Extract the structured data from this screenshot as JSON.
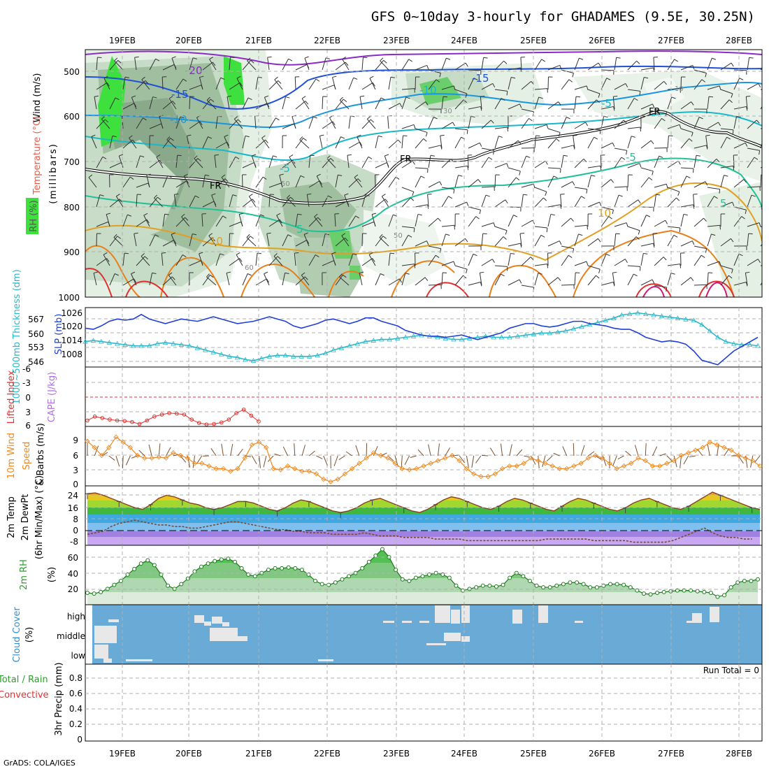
{
  "title": "GFS 0~10day 3-hourly for GHADAMES (9.5E, 30.25N)",
  "credit": "GrADS: COLA/IGES",
  "dates": [
    "19FEB",
    "20FEB",
    "21FEB",
    "22FEB",
    "23FEB",
    "24FEB",
    "25FEB",
    "26FEB",
    "27FEB",
    "28FEB"
  ],
  "colors": {
    "slp": "#1f3fd6",
    "thickness": "#2ab8c8",
    "lifted_index": "#e03030",
    "cape": "#b070e0",
    "wind_speed": "#f08a20",
    "rh_fill": "#2e9e2e",
    "rh_line": "#1a7a1a",
    "cloud_bg": "#6aaad6",
    "cloud_fill": "#e8e8e8",
    "rain": "#2aa02a",
    "convective": "#e03030"
  },
  "labels": {
    "wind": "Wind (m/s)",
    "temperature": "Temperature (°C)",
    "rh": "RH (%)",
    "millibars": "(millibars)",
    "thickness": "1000~500mb Thickness (dm)",
    "slp": "SLP (mb)",
    "lifted_index": "Lifted Index",
    "cape": "CAPE (J/kg)",
    "wind10": "10m Wind",
    "speed": "Speed",
    "barbs": "& Barbs (m/s)",
    "temp2m": "2m Temp",
    "dewpt2m": "2m DewPt",
    "minmax": "(6hr Min/Max) (°C)",
    "rh2m": "2m RH",
    "pct": "(%)",
    "cloud_cover": "Cloud Cover",
    "cloud_pct": "(%)",
    "total_rain": "Total / Rain",
    "convective": "Convective",
    "precip": "3hr Precip (mm)",
    "run_total": "Run Total = 0"
  },
  "panels": {
    "profile": {
      "y_ticks": [
        "500",
        "600",
        "700",
        "800",
        "900",
        "1000"
      ],
      "contour_labels": [
        "-20",
        "-15",
        "-15",
        "-10",
        "-10",
        "-5",
        "-5",
        "-5",
        "5",
        "5",
        "10",
        "10",
        "FR",
        "FR",
        "FR"
      ],
      "rh_labels": [
        "30",
        "50",
        "10",
        "60",
        "50"
      ]
    },
    "slp": {
      "y_ticks": [
        "1026",
        "1020",
        "1014",
        "1008"
      ]
    },
    "thickness": {
      "y_ticks": [
        "567",
        "560",
        "553",
        "546"
      ]
    },
    "li": {
      "y_ticks": [
        "-6",
        "-3",
        "0",
        "3",
        "6"
      ]
    },
    "wind10": {
      "y_ticks": [
        "9",
        "6",
        "3",
        "0"
      ]
    },
    "temp2m": {
      "y_ticks": [
        "24",
        "16",
        "8",
        "0",
        "-8"
      ]
    },
    "rh2m": {
      "y_ticks": [
        "60",
        "40",
        "20"
      ]
    },
    "cloud": {
      "y_ticks": [
        "high",
        "middle",
        "low"
      ]
    },
    "precip": {
      "y_ticks": [
        "0.8",
        "0.6",
        "0.4",
        "0.2",
        "0"
      ]
    }
  },
  "chart_data": [
    {
      "type": "line",
      "title": "Sea Level Pressure / 1000~500mb Thickness",
      "x_start": "18FEB 18Z",
      "x_step_hours": 3,
      "series": [
        {
          "name": "SLP (mb)",
          "ylim": [
            1003,
            1029
          ],
          "values": [
            1020,
            1019.5,
            1021,
            1023,
            1024,
            1023.5,
            1024,
            1026,
            1024,
            1023,
            1022,
            1023,
            1024,
            1023.5,
            1023,
            1024,
            1025,
            1024,
            1023,
            1022,
            1022.5,
            1023,
            1024,
            1025,
            1024,
            1023,
            1021,
            1020,
            1021,
            1022,
            1023.5,
            1024,
            1023,
            1022,
            1023,
            1024.5,
            1024.5,
            1023,
            1022,
            1021,
            1019,
            1018,
            1017,
            1016.5,
            1016.5,
            1016,
            1016.5,
            1017,
            1016,
            1015,
            1016,
            1017,
            1018,
            1020,
            1021,
            1022,
            1022,
            1021,
            1020.5,
            1021,
            1022,
            1023,
            1023,
            1022,
            1021.5,
            1021,
            1020,
            1019.5,
            1019.5,
            1018,
            1016,
            1015,
            1014,
            1014.5,
            1014,
            1013,
            1010,
            1006,
            1005,
            1004,
            1007,
            1010,
            1012,
            1014,
            1016
          ]
        },
        {
          "name": "Thickness (dm)",
          "ylim": [
            543,
            571
          ],
          "values": [
            555,
            555.5,
            555,
            554.5,
            554,
            553.5,
            553,
            553,
            553,
            554,
            554.5,
            554,
            553.5,
            553,
            552,
            551,
            550,
            549,
            548,
            547.5,
            546.5,
            546,
            547,
            548,
            548.5,
            548.5,
            548,
            548,
            548,
            548.5,
            549.5,
            551,
            552,
            553,
            554,
            555,
            555.5,
            556,
            556,
            556.5,
            557,
            557.5,
            558,
            557.5,
            557,
            556.5,
            556,
            556,
            556.5,
            557,
            557.5,
            557,
            557,
            557,
            557.5,
            558,
            558.5,
            559,
            559,
            559.5,
            560,
            561,
            562,
            563,
            564,
            565,
            566,
            567.5,
            568,
            568.5,
            568,
            567.5,
            567,
            566.5,
            566,
            565.5,
            565,
            563,
            560,
            557,
            555,
            554,
            553.5,
            553.5,
            553
          ]
        }
      ]
    },
    {
      "type": "line",
      "title": "Lifted Index",
      "ylim": [
        6,
        -6
      ],
      "series": [
        {
          "name": "Lifted Index",
          "values": [
            4.8,
            4,
            4.3,
            4.6,
            4.8,
            4.9,
            5.1,
            5.5,
            4.8,
            4,
            3.6,
            3.3,
            3.4,
            3.6,
            4.6,
            5.3,
            5.6,
            5.5,
            5.2,
            4.6,
            3.3,
            2.6,
            3.8,
            5
          ]
        }
      ]
    },
    {
      "type": "line",
      "title": "10m Wind Speed",
      "ylim": [
        0,
        11
      ],
      "series": [
        {
          "name": "10m Wind Speed (m/s)",
          "values": [
            8.2,
            7,
            5.5,
            7,
            9,
            8,
            7,
            5.5,
            5,
            5,
            5.2,
            5,
            6,
            5.5,
            5,
            4,
            4,
            3.5,
            3,
            3,
            2.5,
            3,
            5,
            7.5,
            8,
            7,
            3,
            2.8,
            3.5,
            3,
            2.5,
            2.5,
            2,
            1,
            0.5,
            1,
            2,
            3,
            4,
            5,
            6,
            5.5,
            5,
            4,
            3,
            2.8,
            3,
            3.5,
            4,
            4.5,
            5,
            5.5,
            4.5,
            3,
            2,
            1.5,
            1.5,
            2,
            3,
            3.5,
            3.5,
            4,
            5,
            4.5,
            4,
            3.5,
            3,
            3,
            3.5,
            4,
            5,
            5.5,
            5,
            4,
            3,
            3.5,
            4,
            5,
            4.5,
            3.5,
            3.5,
            4,
            4.5,
            5.5,
            6,
            6.5,
            7,
            8,
            7.5,
            7,
            6.5,
            5.5,
            5,
            4.5,
            3.5
          ]
        }
      ]
    },
    {
      "type": "area",
      "title": "2m Temperature / Dew Point",
      "ylim": [
        -10,
        28
      ],
      "series": [
        {
          "name": "2m Temp (°C)",
          "values": [
            23,
            23.5,
            22,
            20,
            18,
            16,
            14,
            13,
            16,
            20,
            22,
            21,
            19,
            17,
            16,
            14,
            13,
            14,
            16,
            18,
            18,
            17,
            15,
            13,
            12,
            14,
            17,
            19,
            18,
            16,
            14,
            12,
            11,
            12,
            14,
            17,
            19,
            20,
            18,
            16,
            14,
            12,
            11,
            13,
            16,
            19,
            21,
            20,
            18,
            16,
            14,
            13,
            15,
            18,
            20,
            19,
            17,
            15,
            13,
            12,
            15,
            18,
            20,
            19,
            17,
            15,
            13,
            12,
            14,
            17,
            19,
            20,
            18,
            16,
            14,
            13,
            15,
            18,
            21,
            24,
            22,
            20,
            18,
            16,
            14,
            13
          ]
        },
        {
          "name": "2m DewPt (°C)",
          "values": [
            -3,
            -2,
            -1,
            2,
            4,
            5,
            6,
            5,
            4,
            3,
            3,
            2,
            2,
            1,
            1,
            2,
            3,
            4,
            5,
            5,
            4,
            3,
            2,
            1,
            0,
            0,
            -1,
            -1,
            -2,
            -2,
            -2,
            -3,
            -3,
            -3,
            -3,
            -2,
            -3,
            -4,
            -4,
            -4,
            -5,
            -5,
            -5,
            -5,
            -6,
            -6,
            -6,
            -6,
            -7,
            -7,
            -7,
            -7,
            -7,
            -7,
            -7,
            -7,
            -7,
            -7,
            -6,
            -6,
            -6,
            -6,
            -6,
            -6,
            -7,
            -7,
            -7,
            -7,
            -7,
            -8,
            -8,
            -8,
            -8,
            -8,
            -7,
            -5,
            -3,
            -1,
            1,
            -2,
            -4,
            -5,
            -5,
            -6,
            -6
          ]
        }
      ]
    },
    {
      "type": "area",
      "title": "2m RH",
      "ylim": [
        0,
        75
      ],
      "series": [
        {
          "name": "2m RH (%)",
          "values": [
            15,
            14,
            16,
            20,
            25,
            30,
            38,
            45,
            52,
            56,
            50,
            38,
            24,
            20,
            26,
            33,
            42,
            48,
            52,
            55,
            57,
            58,
            54,
            46,
            38,
            36,
            40,
            44,
            46,
            46,
            47,
            46,
            44,
            38,
            30,
            26,
            25,
            28,
            32,
            36,
            40,
            46,
            54,
            62,
            70,
            60,
            44,
            32,
            30,
            34,
            36,
            38,
            40,
            38,
            34,
            24,
            18,
            20,
            22,
            24,
            24,
            23,
            25,
            34,
            40,
            36,
            30,
            24,
            22,
            22,
            24,
            26,
            28,
            28,
            26,
            22,
            22,
            24,
            26,
            26,
            25,
            22,
            18,
            14,
            13,
            15,
            16,
            17,
            18,
            18,
            18,
            17,
            16,
            15,
            10,
            12,
            22,
            28,
            30,
            30,
            32
          ]
        }
      ]
    },
    {
      "type": "bar",
      "title": "Cloud Cover (%)",
      "levels": [
        "high",
        "middle",
        "low"
      ],
      "note": "mostly clear with scattered low/middle cloud 18-19FEB, high cloud 20FEB, 23-24FEB, 27-28FEB"
    },
    {
      "type": "bar",
      "title": "3hr Precip (mm)",
      "ylim": [
        0,
        0.95
      ],
      "values": [
        0
      ],
      "run_total": 0
    }
  ]
}
